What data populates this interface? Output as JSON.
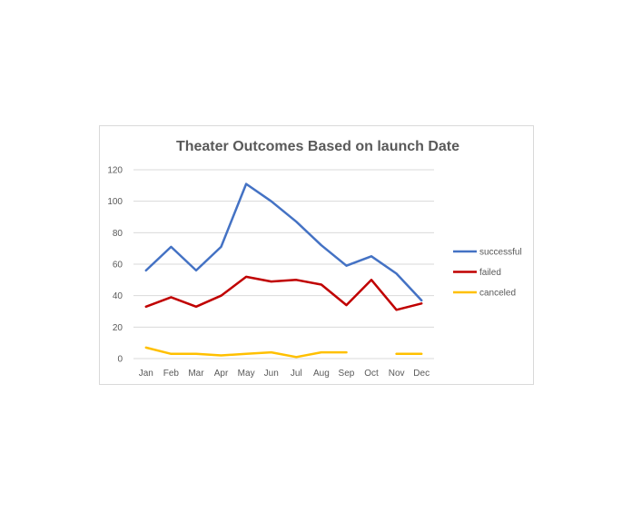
{
  "chart_data": {
    "type": "line",
    "title": "Theater Outcomes Based on launch Date",
    "xlabel": "",
    "ylabel": "",
    "categories": [
      "Jan",
      "Feb",
      "Mar",
      "Apr",
      "May",
      "Jun",
      "Jul",
      "Aug",
      "Sep",
      "Oct",
      "Nov",
      "Dec"
    ],
    "ylim": [
      0,
      120
    ],
    "yticks": [
      "0",
      "20",
      "40",
      "60",
      "80",
      "100",
      "120"
    ],
    "grid": true,
    "legend_position": "right",
    "series": [
      {
        "name": "successful",
        "color": "#4472c4",
        "values": [
          56,
          71,
          56,
          71,
          111,
          100,
          87,
          72,
          59,
          65,
          54,
          37
        ]
      },
      {
        "name": "failed",
        "color": "#c00000",
        "values": [
          33,
          39,
          33,
          40,
          52,
          49,
          50,
          47,
          34,
          50,
          31,
          35
        ]
      },
      {
        "name": "canceled",
        "color": "#ffc000",
        "values": [
          7,
          3,
          3,
          2,
          3,
          4,
          1,
          4,
          4,
          null,
          3,
          3
        ]
      }
    ]
  }
}
